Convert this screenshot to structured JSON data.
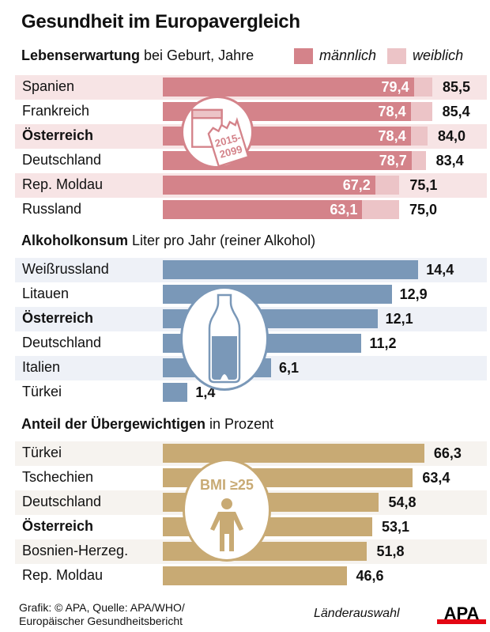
{
  "title": "Gesundheit im Europavergleich",
  "colors": {
    "male": "#d4838a",
    "female": "#ecc4c7",
    "life_stripe": "#f7e4e5",
    "alcohol": "#7a98b8",
    "alcohol_stripe": "#eef1f7",
    "overweight": "#c8aa74",
    "overweight_stripe": "#f6f3ef"
  },
  "chart_data": [
    {
      "type": "bar",
      "id": "lebenserwartung",
      "title_bold": "Lebenserwartung",
      "title_rest": " bei Geburt, Jahre",
      "legend": [
        {
          "name": "männlich",
          "color": "#d4838a"
        },
        {
          "name": "weiblich",
          "color": "#ecc4c7"
        }
      ],
      "legend_position": "top-right",
      "categories": [
        "Spanien",
        "Frankreich",
        "Österreich",
        "Deutschland",
        "Rep. Moldau",
        "Russland"
      ],
      "highlight": "Österreich",
      "series": [
        {
          "name": "männlich",
          "values": [
            79.4,
            78.4,
            78.4,
            78.7,
            67.2,
            63.1
          ],
          "labels": [
            "79,4",
            "78,4",
            "78,4",
            "78,7",
            "67,2",
            "63,1"
          ]
        },
        {
          "name": "weiblich",
          "values": [
            85.5,
            85.4,
            84.0,
            83.4,
            75.1,
            75.0
          ],
          "labels": [
            "85,5",
            "85,4",
            "84,0",
            "83,4",
            "75,1",
            "75,0"
          ]
        }
      ],
      "icon": {
        "name": "calendar-icon",
        "text": [
          "2015-",
          "2099"
        ]
      }
    },
    {
      "type": "bar",
      "id": "alkoholkonsum",
      "title_bold": "Alkoholkonsum",
      "title_rest": " Liter pro Jahr (reiner Alkohol)",
      "categories": [
        "Weißrussland",
        "Litauen",
        "Österreich",
        "Deutschland",
        "Italien",
        "Türkei"
      ],
      "highlight": "Österreich",
      "values": [
        14.4,
        12.9,
        12.1,
        11.2,
        6.1,
        1.4
      ],
      "labels": [
        "14,4",
        "12,9",
        "12,1",
        "11,2",
        "6,1",
        "1,4"
      ],
      "icon": {
        "name": "bottle-icon"
      }
    },
    {
      "type": "bar",
      "id": "uebergewicht",
      "title_bold": "Anteil der Übergewichtigen",
      "title_rest": " in Prozent",
      "categories": [
        "Türkei",
        "Tschechien",
        "Deutschland",
        "Österreich",
        "Bosnien-Herzeg.",
        "Rep. Moldau"
      ],
      "highlight": "Österreich",
      "values": [
        66.3,
        63.4,
        54.8,
        53.1,
        51.8,
        46.6
      ],
      "labels": [
        "66,3",
        "63,4",
        "54,8",
        "53,1",
        "51,8",
        "46,6"
      ],
      "icon": {
        "name": "person-icon",
        "text": "BMI ≥25"
      }
    }
  ],
  "footer": {
    "source_line1": "Grafik: © APA, Quelle: APA/WHO/",
    "source_line2": "Europäischer Gesundheitsbericht",
    "country_select": "Länderauswahl",
    "logo": "APA"
  }
}
